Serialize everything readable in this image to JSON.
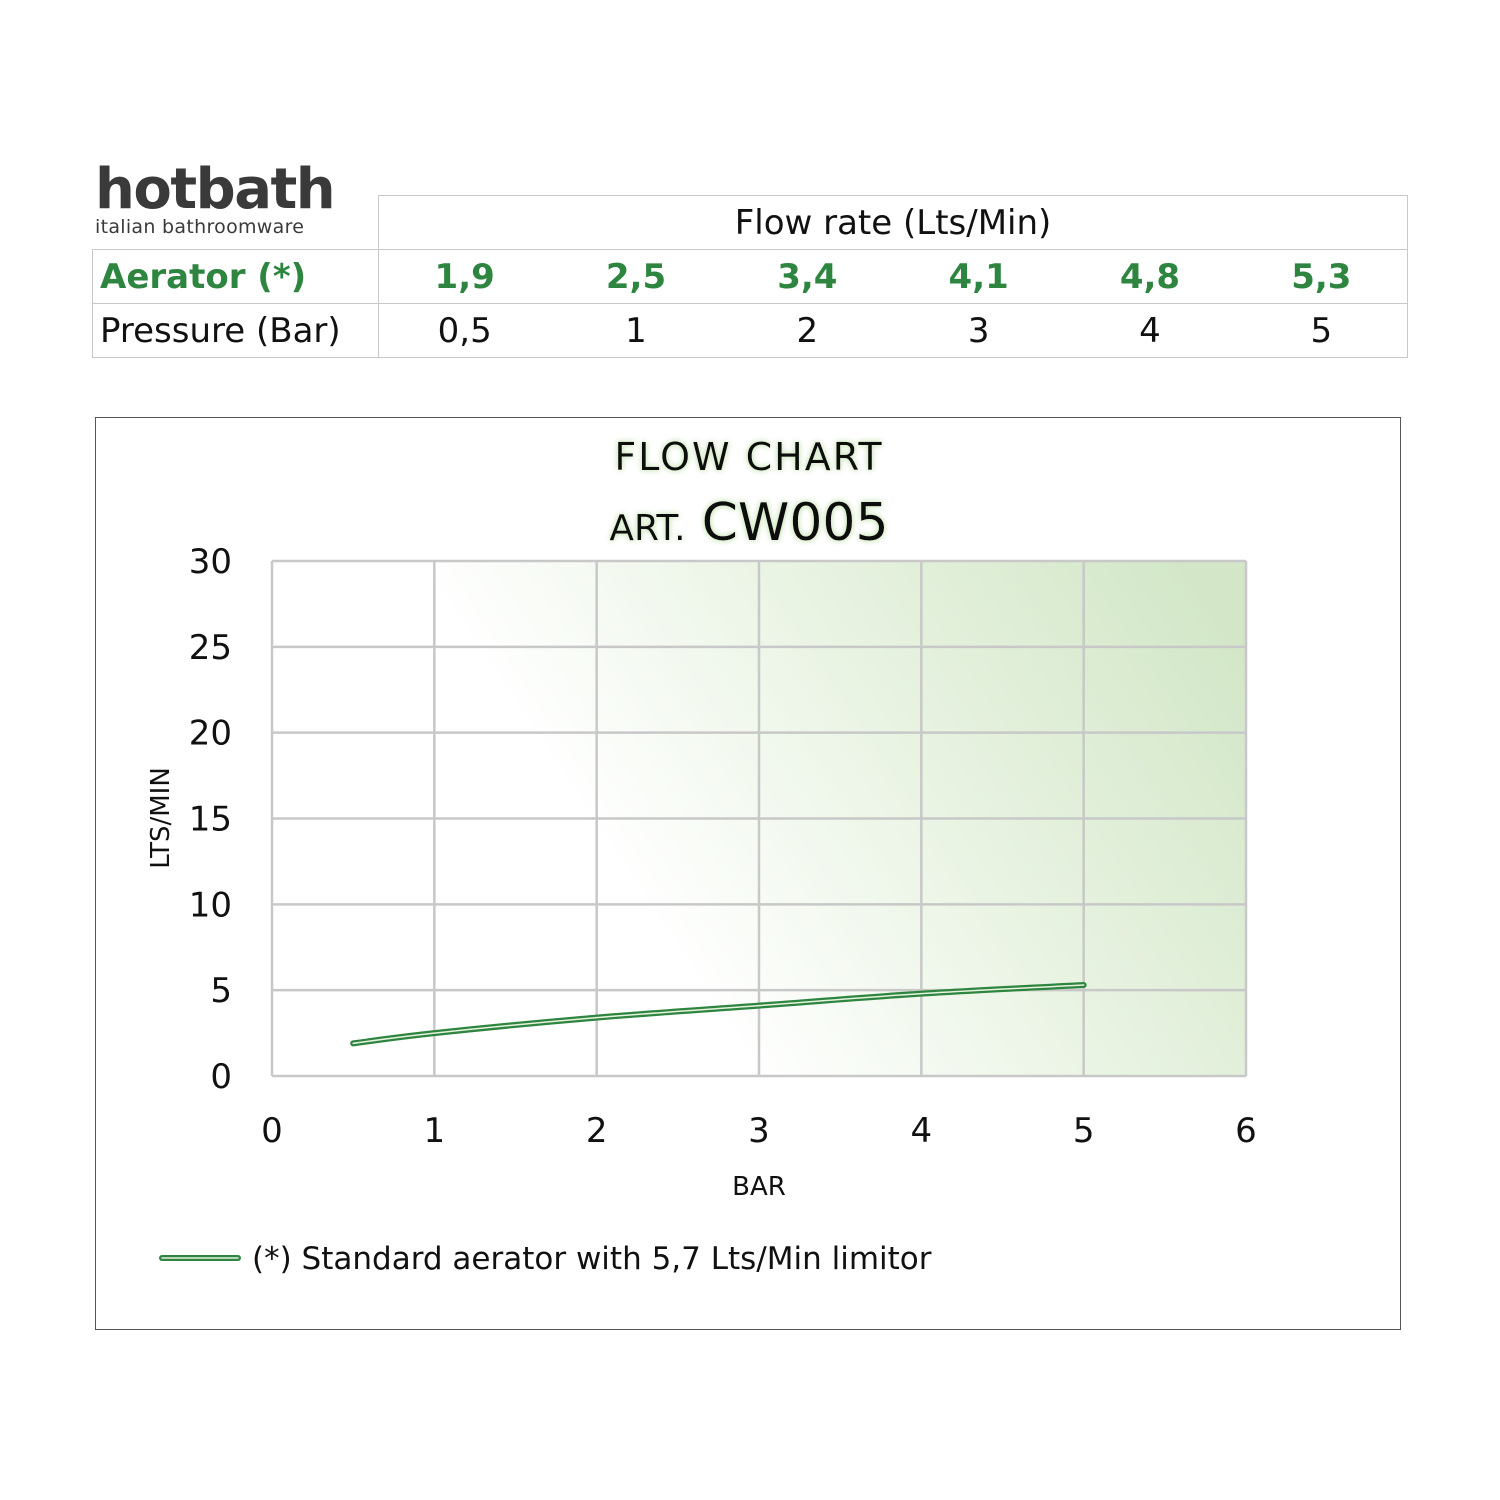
{
  "logo": {
    "name": "hotbath",
    "tagline": "italian bathroomware"
  },
  "table": {
    "header": "Flow rate (Lts/Min)",
    "rows": [
      {
        "label": "Aerator (*)",
        "values": [
          "1,9",
          "2,5",
          "3,4",
          "4,1",
          "4,8",
          "5,3"
        ],
        "highlight": true
      },
      {
        "label": "Pressure (Bar)",
        "values": [
          "0,5",
          "1",
          "2",
          "3",
          "4",
          "5"
        ],
        "highlight": false
      }
    ]
  },
  "colors": {
    "accent": "#2e8540",
    "grid": "#c8c8c8",
    "shade": "#d3e7c8"
  },
  "chart_data": {
    "type": "line",
    "title": "FLOW CHART",
    "subtitle_prefix": "ART.",
    "subtitle_code": "CW005",
    "xlabel": "BAR",
    "ylabel": "LTS/MIN",
    "xlim": [
      0,
      6
    ],
    "ylim": [
      0,
      30
    ],
    "xticks": [
      "0",
      "1",
      "2",
      "3",
      "4",
      "5",
      "6"
    ],
    "yticks": [
      "0",
      "5",
      "10",
      "15",
      "20",
      "25",
      "30"
    ],
    "grid": true,
    "legend_position": "bottom-left",
    "series": [
      {
        "name": "(*) Standard aerator with 5,7 Lts/Min limitor",
        "x": [
          0.5,
          1,
          2,
          3,
          4,
          5
        ],
        "y": [
          1.9,
          2.5,
          3.4,
          4.1,
          4.8,
          5.3
        ]
      }
    ]
  }
}
